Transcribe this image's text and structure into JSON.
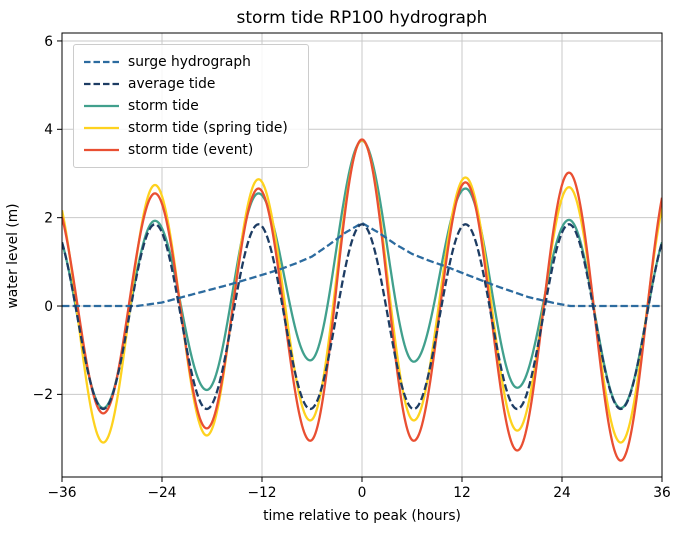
{
  "chart_data": {
    "type": "line",
    "title": "storm tide RP100 hydrograph",
    "xlabel": "time relative to peak (hours)",
    "ylabel": "water level (m)",
    "xlim": [
      -36,
      36
    ],
    "ylim": [
      -3.87,
      6.18
    ],
    "xticks": [
      -36,
      -24,
      -12,
      0,
      12,
      24,
      36
    ],
    "yticks": [
      -2,
      0,
      2,
      4,
      6
    ],
    "grid": true,
    "grid_color": "#c9c9c9",
    "axis_color": "#000000",
    "background_color": "#ffffff",
    "legend_position": "upper left",
    "tide_period_hours": 12.42,
    "series": [
      {
        "name": "surge hydrograph",
        "color": "#2c6b9f",
        "style": "dashed",
        "interp": "linear",
        "points": [
          [
            -36,
            0
          ],
          [
            -27,
            0
          ],
          [
            -24,
            0.08
          ],
          [
            -20,
            0.28
          ],
          [
            -16,
            0.48
          ],
          [
            -12.42,
            0.68
          ],
          [
            -10,
            0.82
          ],
          [
            -8,
            0.96
          ],
          [
            -6,
            1.12
          ],
          [
            -4,
            1.38
          ],
          [
            -2,
            1.66
          ],
          [
            0,
            1.88
          ],
          [
            2,
            1.66
          ],
          [
            4,
            1.4
          ],
          [
            6,
            1.18
          ],
          [
            8,
            1.03
          ],
          [
            10,
            0.9
          ],
          [
            12.42,
            0.72
          ],
          [
            16,
            0.46
          ],
          [
            20,
            0.2
          ],
          [
            23,
            0.07
          ],
          [
            25,
            0
          ],
          [
            36,
            0
          ]
        ]
      },
      {
        "name": "average tide",
        "color": "#1d3c63",
        "style": "dashed",
        "interp": "cosine",
        "points": [
          [
            -37.26,
            1.85
          ],
          [
            -31.05,
            -2.33
          ],
          [
            -24.84,
            1.85
          ],
          [
            -18.63,
            -2.33
          ],
          [
            -12.42,
            1.85
          ],
          [
            -6.21,
            -2.33
          ],
          [
            0,
            1.85
          ],
          [
            6.21,
            -2.33
          ],
          [
            12.42,
            1.85
          ],
          [
            18.63,
            -2.33
          ],
          [
            24.84,
            1.85
          ],
          [
            31.05,
            -2.33
          ],
          [
            37.26,
            1.85
          ]
        ]
      },
      {
        "name": "storm tide",
        "color": "#41a08d",
        "style": "solid",
        "interp": "cosine",
        "points": [
          [
            -37.26,
            1.85
          ],
          [
            -31.05,
            -2.31
          ],
          [
            -24.84,
            1.93
          ],
          [
            -18.63,
            -1.9
          ],
          [
            -12.42,
            2.55
          ],
          [
            -6.21,
            -1.23
          ],
          [
            0,
            3.74
          ],
          [
            6.21,
            -1.26
          ],
          [
            12.42,
            2.66
          ],
          [
            18.63,
            -1.85
          ],
          [
            24.84,
            1.95
          ],
          [
            31.05,
            -2.31
          ],
          [
            37.26,
            1.85
          ]
        ]
      },
      {
        "name": "storm tide (spring tide)",
        "color": "#fed21f",
        "style": "solid",
        "interp": "cosine",
        "points": [
          [
            -37.26,
            2.74
          ],
          [
            -31.05,
            -3.09
          ],
          [
            -24.84,
            2.74
          ],
          [
            -18.63,
            -2.93
          ],
          [
            -12.42,
            2.87
          ],
          [
            -6.21,
            -2.59
          ],
          [
            0,
            3.75
          ],
          [
            6.21,
            -2.59
          ],
          [
            12.42,
            2.91
          ],
          [
            18.63,
            -2.82
          ],
          [
            24.84,
            2.69
          ],
          [
            31.05,
            -3.09
          ],
          [
            37.26,
            2.8
          ]
        ]
      },
      {
        "name": "storm tide (event)",
        "color": "#e94f32",
        "style": "solid",
        "interp": "cosine",
        "points": [
          [
            -37.26,
            2.5
          ],
          [
            -31.05,
            -2.43
          ],
          [
            -24.84,
            2.55
          ],
          [
            -18.63,
            -2.77
          ],
          [
            -12.42,
            2.66
          ],
          [
            -6.21,
            -3.05
          ],
          [
            0,
            3.77
          ],
          [
            6.21,
            -3.05
          ],
          [
            12.42,
            2.8
          ],
          [
            18.63,
            -3.27
          ],
          [
            24.84,
            3.02
          ],
          [
            31.05,
            -3.5
          ],
          [
            37.26,
            3.1
          ]
        ]
      }
    ],
    "draw_order": [
      2,
      3,
      4,
      0,
      1
    ],
    "line_width": 2.3,
    "dash_pattern": "7.4 3.2"
  }
}
